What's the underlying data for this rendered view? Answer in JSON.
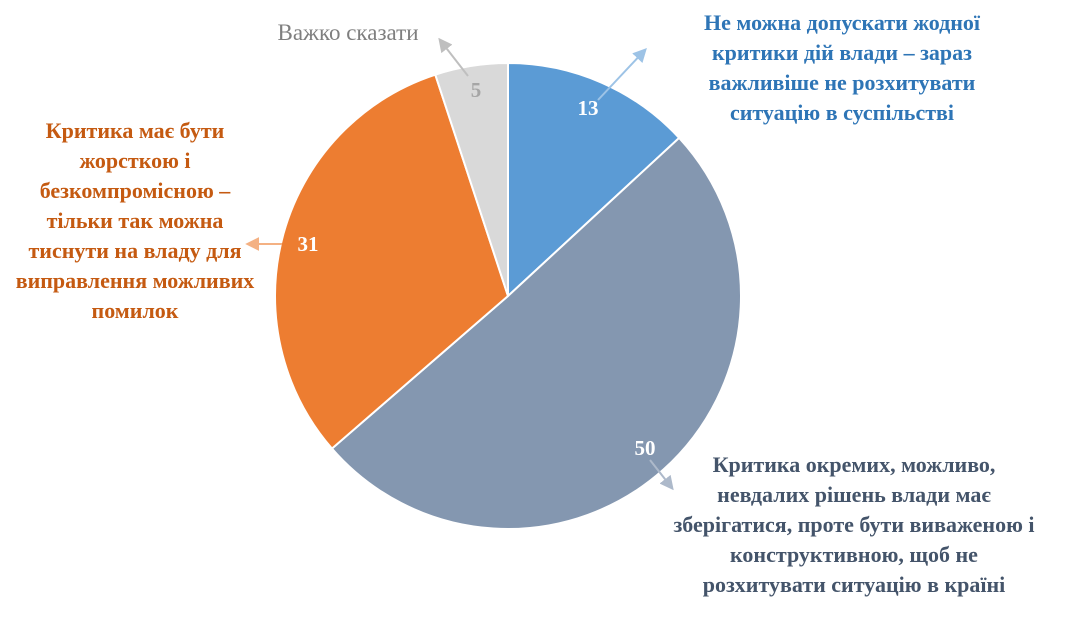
{
  "chart_data": {
    "type": "pie",
    "title": "",
    "slices": [
      {
        "label": "Не можна допускати жодної критики дій влади – зараз важливіше не розхитувати ситуацію в суспільстві",
        "value": 13,
        "color": "#5B9BD5",
        "label_color": "#2E75B6"
      },
      {
        "label": "Критика окремих, можливо, невдалих рішень влади має зберігатися, проте бути виваженою і конструктивною, щоб не розхитувати ситуацію в країні",
        "value": 50,
        "color": "#8497B0",
        "label_color": "#44546A"
      },
      {
        "label": "Критика має бути жорсткою і безкомпромісною – тільки так можна тиснути на владу для виправлення можливих помилок",
        "value": 31,
        "color": "#ED7D31",
        "label_color": "#C55A11"
      },
      {
        "label": "Важко сказати",
        "value": 5,
        "color": "#D9D9D9",
        "label_color": "#7F7F7F"
      }
    ],
    "value_label_colors": [
      "#FFFFFF",
      "#FFFFFF",
      "#FFFFFF",
      "#A6A6A6"
    ],
    "legend": "none"
  }
}
